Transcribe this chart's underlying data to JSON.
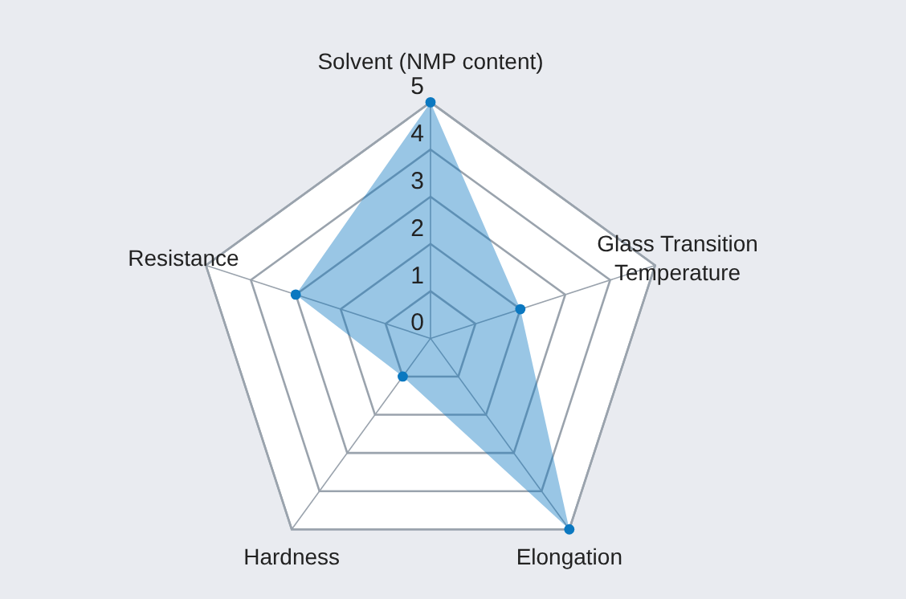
{
  "chart_data": {
    "type": "radar",
    "categories": [
      "Solvent (NMP content)",
      "Glass Transition Temperature",
      "Elongation",
      "Hardness",
      "Resistance"
    ],
    "series": [
      {
        "color": "#0b78c0",
        "values": [
          5,
          2,
          5,
          1,
          3
        ]
      }
    ],
    "ylim": [
      0,
      5
    ],
    "yticks": [
      0,
      1,
      2,
      3,
      4,
      5
    ],
    "grid": true,
    "marker": "circle"
  }
}
